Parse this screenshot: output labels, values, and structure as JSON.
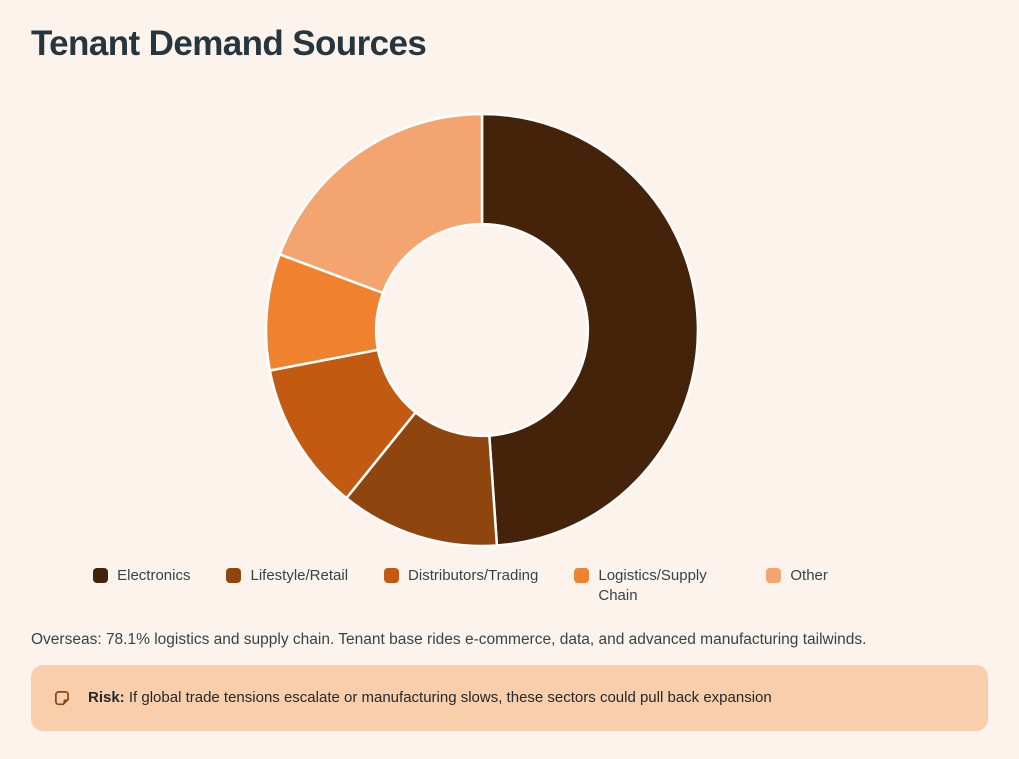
{
  "header": {
    "title": "Tenant Demand Sources"
  },
  "chart_data": {
    "type": "pie",
    "subtype": "donut",
    "title": "Tenant Demand Sources",
    "categories": [
      "Electronics",
      "Lifestyle/Retail",
      "Distributors/Trading",
      "Logistics/Supply Chain",
      "Other"
    ],
    "values": [
      48.9,
      11.9,
      11.2,
      8.7,
      19.3
    ],
    "unit": "percent-of-whole",
    "colors": [
      "#45230A",
      "#8F450E",
      "#C25A11",
      "#F0822F",
      "#F4A46E"
    ],
    "start_angle_deg": 0,
    "direction": "clockwise",
    "inner_radius_ratio": 0.49,
    "slice_border_color": "#FFFFFF",
    "legend_position": "bottom",
    "data_labels_shown": false
  },
  "notes": {
    "overseas": "Overseas: 78.1% logistics and supply chain. Tenant base rides e-commerce, data, and advanced manufacturing tailwinds."
  },
  "risk_callout": {
    "icon": "note-icon",
    "label": "Risk:",
    "text": "If global trade tensions escalate or manufacturing slows, these sectors could pull back expansion",
    "background": "#F9CEAB",
    "icon_color": "#8A4512"
  },
  "page": {
    "background": "#FCF4EC",
    "title_color": "#27363E",
    "text_color": "#35434B"
  }
}
